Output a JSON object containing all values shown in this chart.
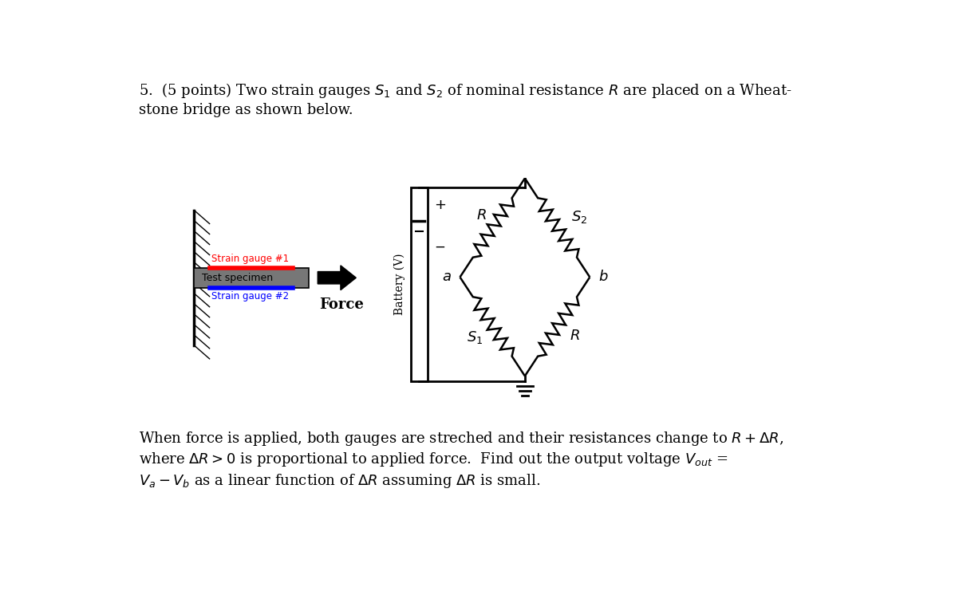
{
  "bg": "#ffffff",
  "black": "#000000",
  "red": "#ff0000",
  "blue": "#0000ff",
  "gray": "#888888",
  "title_line1": "5.  (5 points) Two strain gauges $S_1$ and $S_2$ of nominal resistance $R$ are placed on a Wheat-",
  "title_line2": "stone bridge as shown below.",
  "body_line1": "When force is applied, both gauges are streched and their resistances change to $R+\\Delta R$,",
  "body_line2": "where $\\Delta R > 0$ is proportional to applied force.  Find out the output voltage $V_{out}$ =",
  "body_line3": "$V_a - V_b$ as a linear function of $\\Delta R$ assuming $\\Delta R$ is small."
}
